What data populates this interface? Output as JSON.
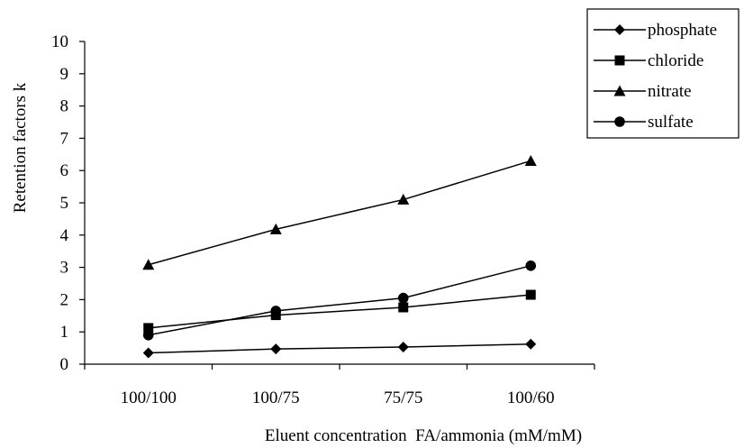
{
  "chart_data": {
    "type": "line",
    "title": "",
    "xlabel": "Eluent concentration  FA/ammonia (mM/mM)",
    "ylabel": "Retention factors k",
    "categories": [
      "100/100",
      "100/75",
      "75/75",
      "100/60"
    ],
    "ylim": [
      0,
      10
    ],
    "yticks": [
      0,
      1,
      2,
      3,
      4,
      5,
      6,
      7,
      8,
      9,
      10
    ],
    "grid": false,
    "legend_position": "top-right",
    "series": [
      {
        "name": "phosphate",
        "marker": "diamond",
        "color": "#000000",
        "values": [
          0.35,
          0.47,
          0.53,
          0.62
        ]
      },
      {
        "name": "chloride",
        "marker": "square",
        "color": "#000000",
        "values": [
          1.12,
          1.52,
          1.76,
          2.15
        ]
      },
      {
        "name": "nitrate",
        "marker": "triangle",
        "color": "#000000",
        "values": [
          3.08,
          4.18,
          5.1,
          6.3
        ]
      },
      {
        "name": "sulfate",
        "marker": "circle",
        "color": "#000000",
        "values": [
          0.9,
          1.65,
          2.05,
          3.05
        ]
      }
    ]
  }
}
